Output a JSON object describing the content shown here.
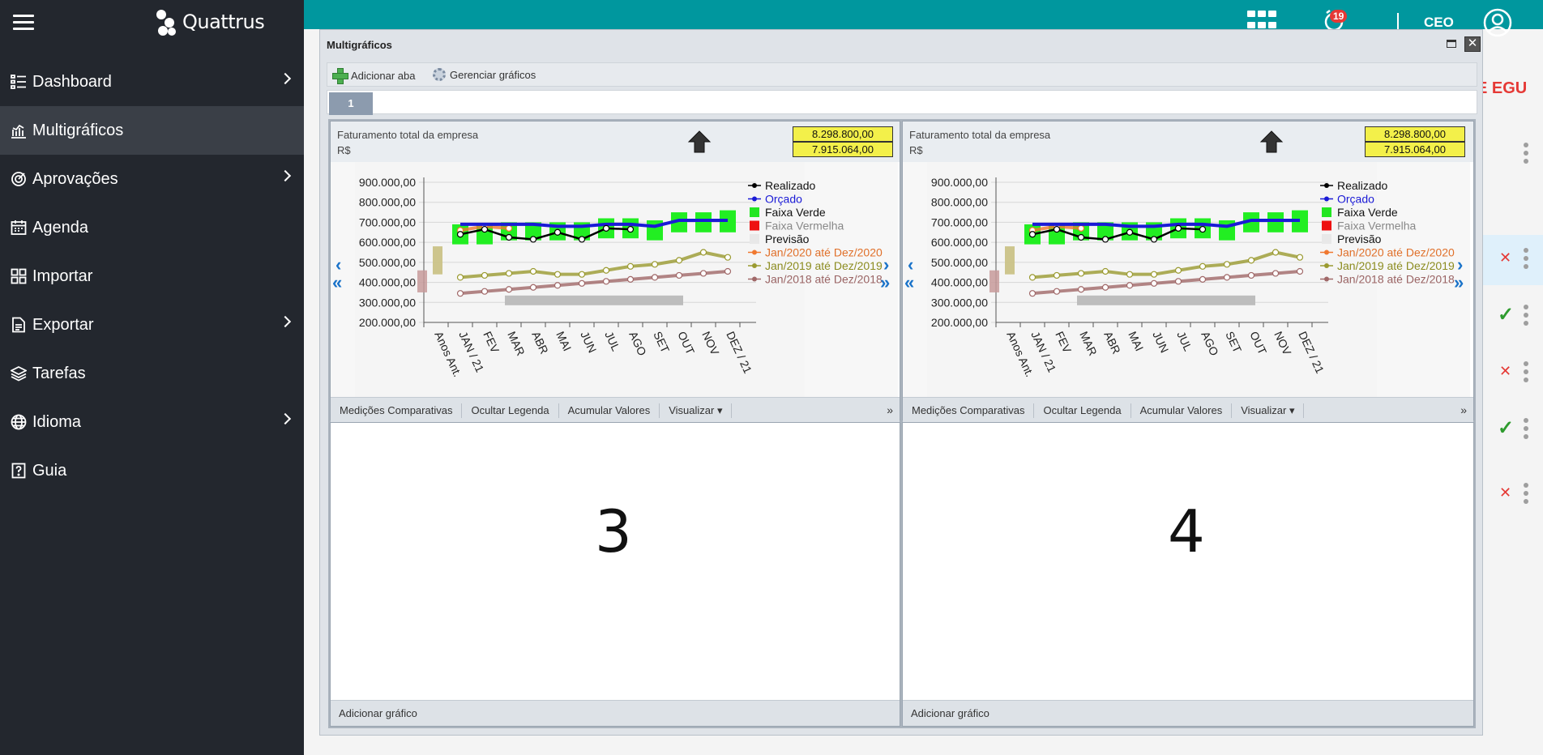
{
  "app": {
    "brand": "Quattrus",
    "user": "CEO",
    "notifications": "19"
  },
  "sidebar": {
    "items": [
      {
        "label": "Dashboard",
        "icon": "dashboard-icon",
        "chevron": true
      },
      {
        "label": "Multigráficos",
        "icon": "chart-icon",
        "chevron": false,
        "active": true
      },
      {
        "label": "Aprovações",
        "icon": "target-icon",
        "chevron": true
      },
      {
        "label": "Agenda",
        "icon": "calendar-icon",
        "chevron": false
      },
      {
        "label": "Importar",
        "icon": "import-icon",
        "chevron": false
      },
      {
        "label": "Exportar",
        "icon": "document-icon",
        "chevron": true
      },
      {
        "label": "Tarefas",
        "icon": "layers-icon",
        "chevron": false
      },
      {
        "label": "Idioma",
        "icon": "globe-icon",
        "chevron": true
      },
      {
        "label": "Guia",
        "icon": "help-icon",
        "chevron": false
      }
    ]
  },
  "background": {
    "right_text": "E EGU"
  },
  "window": {
    "title": "Multigráficos",
    "toolbar": {
      "add_tab": "Adicionar aba",
      "manage": "Gerenciar gráficos"
    },
    "tab": "1",
    "add_chart": "Adicionar gráfico",
    "placeholders": [
      "3",
      "4"
    ]
  },
  "panel": {
    "title": "Faturamento total da empresa",
    "unit": "R$",
    "value1": "8.298.800,00",
    "value2": "7.915.064,00",
    "footer": [
      "Medições Comparativas",
      "Ocultar Legenda",
      "Acumular Valores",
      "Visualizar ▾"
    ],
    "more": "»"
  },
  "chart_data": {
    "type": "line",
    "title": "Faturamento total da empresa",
    "ylabel": "R$",
    "ylim": [
      200000,
      900000
    ],
    "yticks": [
      "900.000,00",
      "800.000,00",
      "700.000,00",
      "600.000,00",
      "500.000,00",
      "400.000,00",
      "300.000,00",
      "200.000,00"
    ],
    "categories": [
      "Anos Ant.",
      "JAN / 21",
      "FEV",
      "MAR",
      "ABR",
      "MAI",
      "JUN",
      "JUL",
      "AGO",
      "SET",
      "OUT",
      "NOV",
      "DEZ / 21"
    ],
    "legend": [
      {
        "name": "Realizado",
        "color": "#000000"
      },
      {
        "name": "Orçado",
        "color": "#1a1ad6"
      },
      {
        "name": "Faixa Verde",
        "color": "#22e622"
      },
      {
        "name": "Faixa Vermelha",
        "color": "#ee1111"
      },
      {
        "name": "Previsão",
        "color": "#e8e8e8"
      },
      {
        "name": "Jan/2020 até Dez/2020",
        "color": "#f07830"
      },
      {
        "name": "Jan/2019 até Dez/2019",
        "color": "#9a9a30"
      },
      {
        "name": "Jan/2018 até Dez/2018",
        "color": "#a06868"
      }
    ],
    "series": [
      {
        "name": "Realizado",
        "values": [
          null,
          640000,
          665000,
          625000,
          615000,
          650000,
          615000,
          670000,
          665000,
          null,
          null,
          null,
          null
        ]
      },
      {
        "name": "Orçado",
        "values": [
          null,
          690000,
          690000,
          690000,
          690000,
          680000,
          680000,
          690000,
          690000,
          680000,
          710000,
          710000,
          710000
        ]
      },
      {
        "name": "Jan/2020 até Dez/2020",
        "values": [
          null,
          660000,
          680000,
          670000,
          null,
          null,
          null,
          null,
          null,
          null,
          null,
          null,
          null
        ]
      },
      {
        "name": "Jan/2019 até Dez/2019",
        "values": [
          null,
          425000,
          435000,
          445000,
          455000,
          440000,
          440000,
          460000,
          480000,
          490000,
          510000,
          550000,
          525000
        ]
      },
      {
        "name": "Jan/2018 até Dez/2018",
        "values": [
          null,
          345000,
          355000,
          365000,
          375000,
          385000,
          395000,
          405000,
          415000,
          425000,
          435000,
          445000,
          455000
        ]
      }
    ],
    "faixa_verde": [
      [
        null,
        null
      ],
      [
        590000,
        690000
      ],
      [
        590000,
        690000
      ],
      [
        610000,
        700000
      ],
      [
        610000,
        700000
      ],
      [
        610000,
        700000
      ],
      [
        610000,
        700000
      ],
      [
        620000,
        720000
      ],
      [
        620000,
        720000
      ],
      [
        610000,
        710000
      ],
      [
        650000,
        750000
      ],
      [
        650000,
        750000
      ],
      [
        650000,
        760000
      ]
    ],
    "anos_ant": {
      "faixa_vermelha": [
        350000,
        460000
      ],
      "previsao": [
        440000,
        580000
      ]
    }
  }
}
